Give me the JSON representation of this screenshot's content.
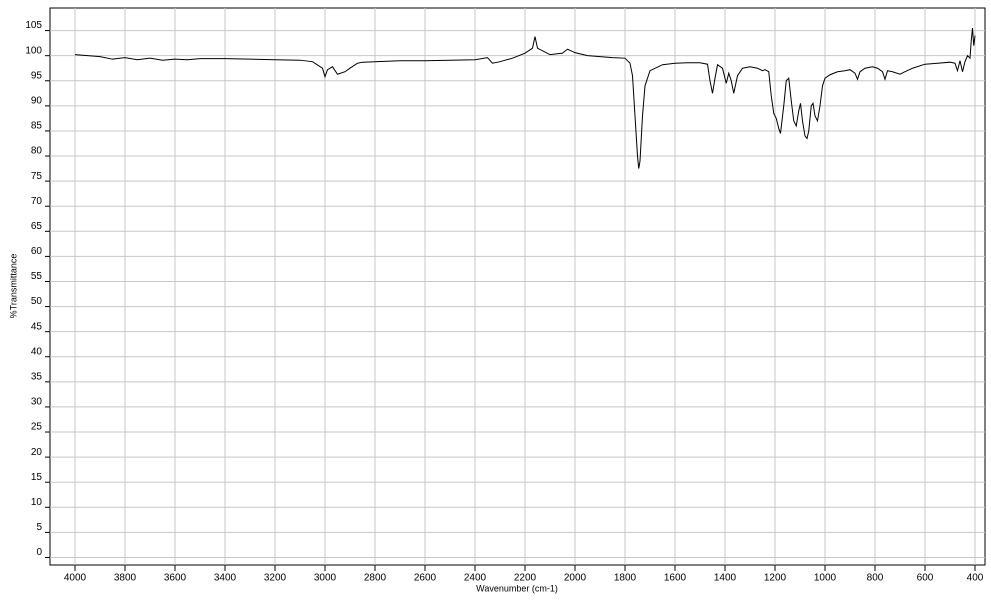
{
  "chart_data": {
    "type": "line",
    "ylabel": "%Transmittance",
    "xlabel": "Wavenumber (cm-1)",
    "xlim": [
      4100,
      360
    ],
    "ylim": [
      -1.5,
      109.5
    ],
    "xticks": [
      4000,
      3800,
      3600,
      3400,
      3200,
      3000,
      2800,
      2600,
      2400,
      2200,
      2000,
      1800,
      1600,
      1400,
      1200,
      1000,
      800,
      600,
      400
    ],
    "yticks": [
      0,
      5,
      10,
      15,
      20,
      25,
      30,
      35,
      40,
      45,
      50,
      55,
      60,
      65,
      70,
      75,
      80,
      85,
      90,
      95,
      100,
      105
    ],
    "grid": true,
    "series": [
      {
        "color": "#000000",
        "x": [
          4000,
          3900,
          3850,
          3800,
          3750,
          3700,
          3650,
          3600,
          3550,
          3500,
          3400,
          3300,
          3200,
          3100,
          3050,
          3010,
          3000,
          2990,
          2970,
          2950,
          2920,
          2900,
          2870,
          2850,
          2800,
          2700,
          2600,
          2500,
          2400,
          2350,
          2330,
          2300,
          2250,
          2200,
          2170,
          2160,
          2150,
          2100,
          2050,
          2030,
          2000,
          1950,
          1900,
          1850,
          1800,
          1780,
          1770,
          1760,
          1750,
          1745,
          1740,
          1730,
          1720,
          1700,
          1650,
          1600,
          1550,
          1500,
          1470,
          1460,
          1450,
          1440,
          1430,
          1410,
          1395,
          1385,
          1375,
          1365,
          1350,
          1330,
          1300,
          1270,
          1250,
          1240,
          1225,
          1215,
          1205,
          1195,
          1185,
          1178,
          1165,
          1155,
          1145,
          1135,
          1125,
          1115,
          1105,
          1098,
          1090,
          1080,
          1072,
          1065,
          1055,
          1048,
          1040,
          1030,
          1020,
          1010,
          1000,
          980,
          950,
          920,
          900,
          880,
          870,
          860,
          840,
          810,
          790,
          770,
          760,
          750,
          730,
          700,
          680,
          650,
          600,
          550,
          500,
          480,
          470,
          460,
          450,
          440,
          430,
          420,
          415,
          410,
          405,
          400
        ],
        "values": [
          100.2,
          99.8,
          99.3,
          99.6,
          99.2,
          99.5,
          99.1,
          99.3,
          99.2,
          99.4,
          99.4,
          99.3,
          99.2,
          99.1,
          98.8,
          97.5,
          95.8,
          97.2,
          97.8,
          96.3,
          96.8,
          97.5,
          98.5,
          98.7,
          98.8,
          99.0,
          99.0,
          99.1,
          99.2,
          99.6,
          98.5,
          98.8,
          99.5,
          100.5,
          101.5,
          103.8,
          101.5,
          100.2,
          100.5,
          101.3,
          100.6,
          100.0,
          99.8,
          99.6,
          99.5,
          98.5,
          96,
          88,
          80,
          77.5,
          79,
          88,
          94,
          97,
          98.2,
          98.5,
          98.6,
          98.6,
          98.3,
          95,
          92.5,
          95.5,
          98.2,
          97.5,
          94.5,
          96.5,
          95,
          92.5,
          96,
          97.5,
          97.8,
          97.5,
          97.0,
          97.2,
          96.8,
          92,
          88.5,
          87.5,
          85.5,
          84.5,
          90,
          95,
          95.5,
          91,
          87,
          86,
          89,
          90.5,
          87,
          84,
          83.5,
          85,
          90,
          90.5,
          88,
          87,
          90,
          94,
          95.5,
          96.2,
          96.8,
          97,
          97.2,
          96.5,
          95.3,
          96.8,
          97.5,
          97.8,
          97.5,
          96.8,
          95.3,
          97.0,
          96.8,
          96.3,
          96.8,
          97.5,
          98.3,
          98.5,
          98.7,
          98.5,
          97,
          99,
          96.8,
          98.8,
          100,
          99.5,
          103,
          105.5,
          102,
          104
        ]
      }
    ]
  }
}
